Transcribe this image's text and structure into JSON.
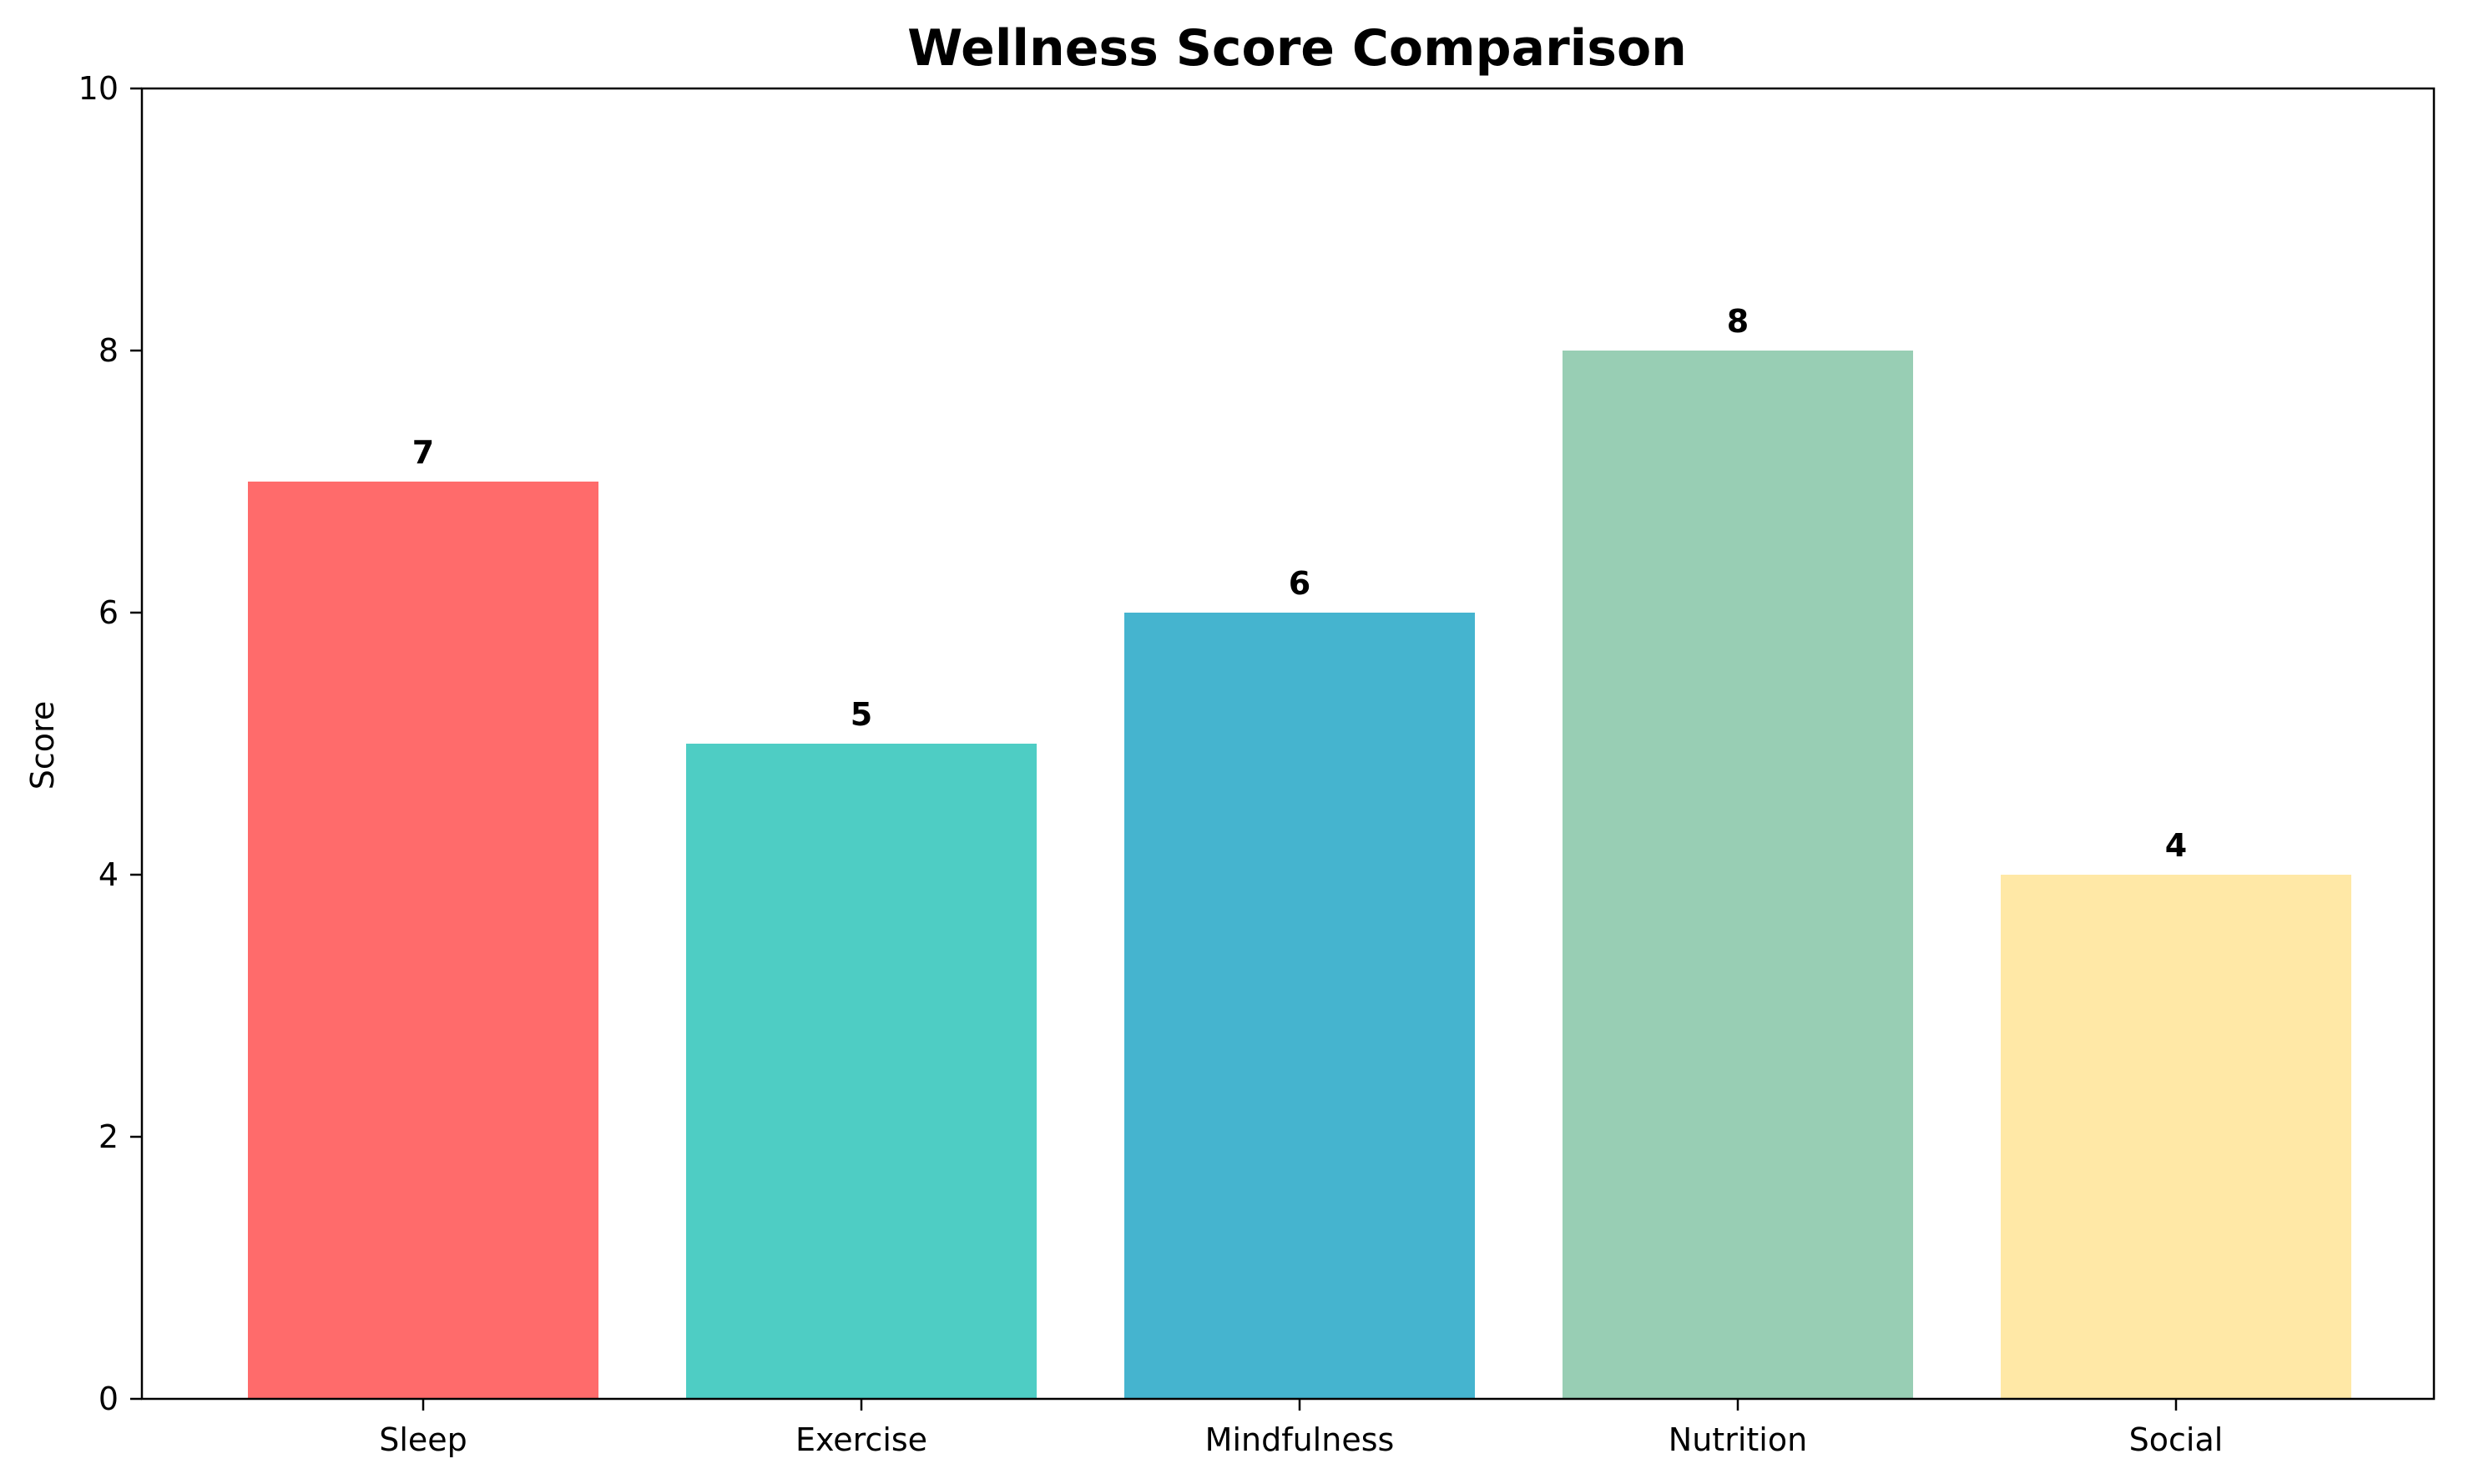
{
  "chart_data": {
    "type": "bar",
    "title": "Wellness Score Comparison",
    "xlabel": "",
    "ylabel": "Score",
    "categories": [
      "Sleep",
      "Exercise",
      "Mindfulness",
      "Nutrition",
      "Social"
    ],
    "values": [
      7,
      5,
      6,
      8,
      4
    ],
    "value_labels": [
      "7",
      "5",
      "6",
      "8",
      "4"
    ],
    "colors": [
      "#FF6B6B",
      "#4ECDC4",
      "#45B4CF",
      "#98CEB4",
      "#FFE8A6"
    ],
    "ylim": [
      0,
      10
    ],
    "yticks": [
      0,
      2,
      4,
      6,
      8,
      10
    ],
    "grid": false,
    "legend": "none"
  }
}
